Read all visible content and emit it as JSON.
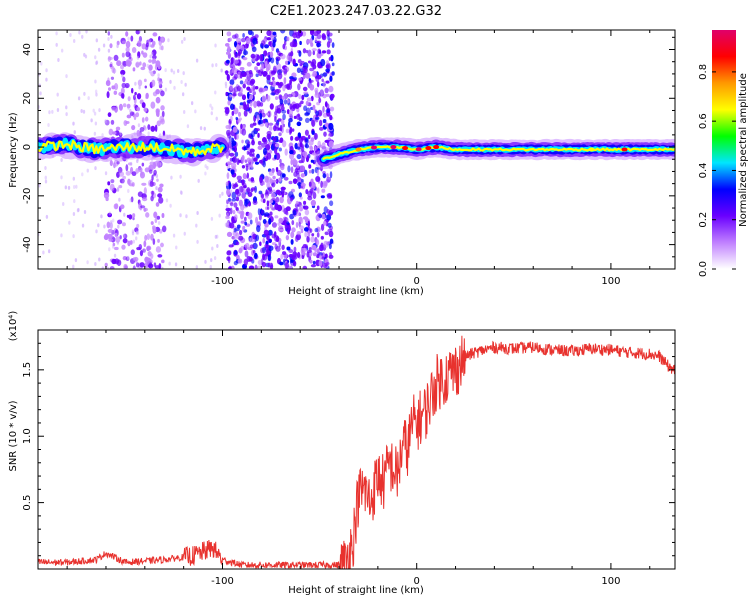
{
  "title": "C2E1.2023.247.03.22.G32",
  "colors": {
    "snr_line": "#e8322e",
    "axis": "#000000",
    "background": "#ffffff"
  },
  "chart_data": [
    {
      "type": "heatmap",
      "name": "frequency-spectrogram",
      "xlabel": "Height of straight line (km)",
      "ylabel": "Frequency (Hz)",
      "xlim": [
        -195,
        133
      ],
      "ylim": [
        -50,
        48
      ],
      "x_ticks": [
        -100,
        0,
        100
      ],
      "y_ticks": [
        -40,
        -20,
        0,
        20,
        40
      ],
      "colorbar": {
        "label": "Normalized spectral amplitude",
        "range": [
          0,
          0.97
        ],
        "ticks": [
          0.0,
          0.2,
          0.4,
          0.6,
          0.8
        ],
        "colors": [
          "#ffffff",
          "#c080ff",
          "#6a00ff",
          "#0000ff",
          "#00e6ff",
          "#00ff00",
          "#ffff00",
          "#ff9900",
          "#ff0000",
          "#e0006a"
        ]
      },
      "ridge": [
        {
          "x": -195,
          "f": 0
        },
        {
          "x": -180,
          "f": 1
        },
        {
          "x": -165,
          "f": -1
        },
        {
          "x": -150,
          "f": 0
        },
        {
          "x": -135,
          "f": 0
        },
        {
          "x": -115,
          "f": -2
        },
        {
          "x": -100,
          "f": 0
        },
        {
          "x": -48,
          "f": -5
        },
        {
          "x": -40,
          "f": -3
        },
        {
          "x": -30,
          "f": -1
        },
        {
          "x": -20,
          "f": 0
        },
        {
          "x": -10,
          "f": 0
        },
        {
          "x": 0,
          "f": -1
        },
        {
          "x": 10,
          "f": 0
        },
        {
          "x": 20,
          "f": -1
        },
        {
          "x": 40,
          "f": -1
        },
        {
          "x": 60,
          "f": -1
        },
        {
          "x": 80,
          "f": -1
        },
        {
          "x": 100,
          "f": -1
        },
        {
          "x": 120,
          "f": -1
        },
        {
          "x": 133,
          "f": -1
        }
      ],
      "noise_bands": [
        {
          "from": -160,
          "to": -130,
          "intensity": 0.45
        },
        {
          "from": -98,
          "to": -43,
          "intensity": 0.9
        }
      ]
    },
    {
      "type": "line",
      "name": "snr-trace",
      "xlabel": "Height of straight line (km)",
      "ylabel": "SNR (10 * v/v)",
      "y_scale_label": "(x10⁴)",
      "xlim": [
        -195,
        133
      ],
      "ylim": [
        0,
        18000
      ],
      "x_ticks": [
        -100,
        0,
        100
      ],
      "y_ticks": [
        5000,
        10000,
        15000
      ],
      "y_tick_labels": [
        "0.5",
        "1.0",
        "1.5"
      ],
      "x_tick_labels": [
        "-100",
        "0",
        "100"
      ],
      "series": [
        {
          "x": [
            -195,
            -180,
            -165,
            -160,
            -150,
            -130,
            -115,
            -105,
            -100,
            -90,
            -80,
            -60,
            -45,
            -37,
            -33,
            -30,
            -27,
            -24,
            -20,
            -17,
            -14,
            -10,
            -7,
            -5,
            -2,
            0,
            5,
            10,
            15,
            20,
            25,
            30,
            35,
            40,
            50,
            60,
            70,
            80,
            90,
            100,
            110,
            120,
            125,
            130,
            133
          ],
          "y": [
            500,
            500,
            700,
            1200,
            500,
            700,
            1000,
            1600,
            700,
            300,
            300,
            300,
            300,
            300,
            2000,
            5500,
            6000,
            5000,
            7000,
            6500,
            8000,
            7000,
            9500,
            9000,
            11000,
            11000,
            12000,
            14000,
            14500,
            15000,
            16000,
            16300,
            16500,
            16700,
            16600,
            16700,
            16500,
            16400,
            16600,
            16500,
            16300,
            16200,
            16000,
            15200,
            15000
          ]
        }
      ]
    }
  ]
}
